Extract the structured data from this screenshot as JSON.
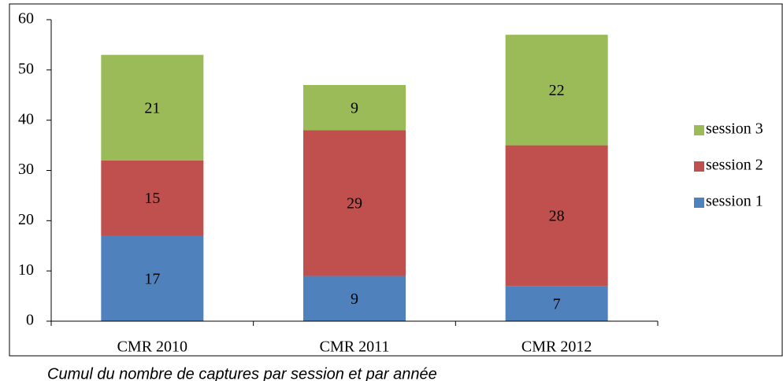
{
  "chart_data": {
    "type": "stacked_bar",
    "caption": "Cumul du nombre de captures par session et par année",
    "categories": [
      "CMR 2010",
      "CMR 2011",
      "CMR 2012"
    ],
    "series": [
      {
        "name": "session 1",
        "color": "#4f81bd",
        "values": [
          17,
          9,
          7
        ]
      },
      {
        "name": "session 2",
        "color": "#c0504d",
        "values": [
          15,
          29,
          28
        ]
      },
      {
        "name": "session 3",
        "color": "#9bbb59",
        "values": [
          21,
          9,
          22
        ]
      }
    ],
    "ylim": [
      0,
      60
    ],
    "yticks": [
      0,
      10,
      20,
      30,
      40,
      50,
      60
    ],
    "grid": false,
    "legend": "right"
  }
}
